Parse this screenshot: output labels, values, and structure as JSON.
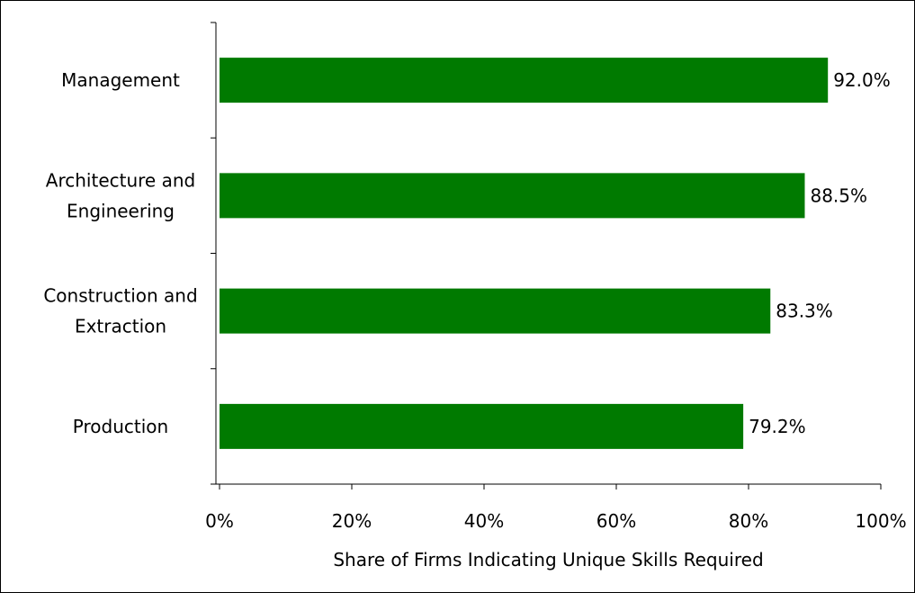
{
  "colors": {
    "bar": "#007a00",
    "axis": "#000000",
    "frame": "#000000"
  },
  "chart_data": {
    "type": "bar",
    "orientation": "horizontal",
    "title": "",
    "xlabel": "Share of Firms Indicating Unique Skills Required",
    "ylabel": "",
    "categories": [
      [
        "Management"
      ],
      [
        "Architecture and",
        "Engineering"
      ],
      [
        "Construction and",
        "Extraction"
      ],
      [
        "Production"
      ]
    ],
    "values": [
      92.0,
      88.5,
      83.3,
      79.2
    ],
    "data_labels": [
      "92.0%",
      "88.5%",
      "83.3%",
      "79.2%"
    ],
    "xlim": [
      0,
      100
    ],
    "xticks": [
      0,
      20,
      40,
      60,
      80,
      100
    ],
    "xtick_labels": [
      "0%",
      "20%",
      "40%",
      "60%",
      "80%",
      "100%"
    ],
    "grid": false,
    "legend": "none"
  }
}
